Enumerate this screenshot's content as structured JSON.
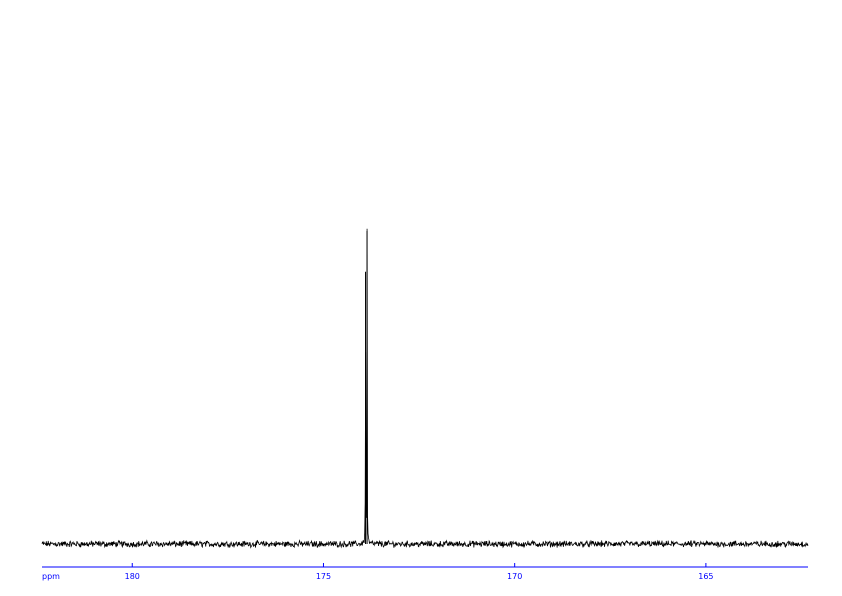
{
  "chart_data": {
    "type": "line",
    "title": "",
    "xlabel": "ppm",
    "ylabel": "",
    "xlim": [
      182.36,
      162.33
    ],
    "x_reversed": true,
    "ylim": [
      0,
      1
    ],
    "grid": false,
    "legend": "none",
    "xticks": [
      180,
      175,
      170,
      165
    ],
    "xtick_labels": [
      "180",
      "175",
      "170",
      "165"
    ],
    "peaks": [
      {
        "ppm": 173.9,
        "intensity": 0.87
      },
      {
        "ppm": 173.86,
        "intensity": 1.0
      }
    ],
    "noise_level": 0.008,
    "colors": {
      "spectrum": "#000000",
      "axis": "#0000ff"
    }
  }
}
